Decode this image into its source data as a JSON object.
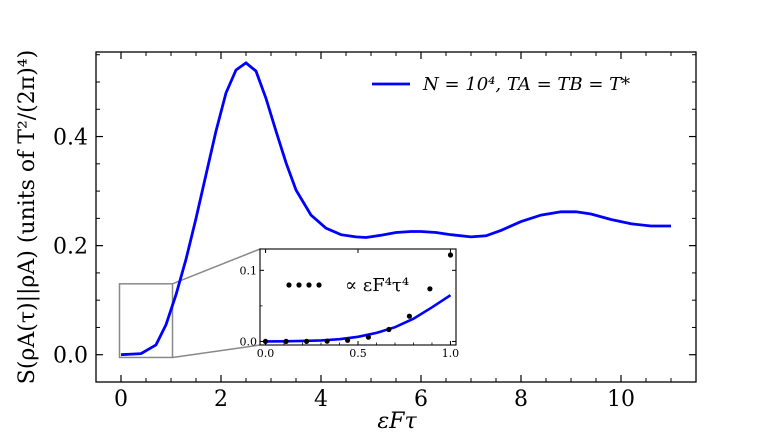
{
  "chart_data": [
    {
      "type": "line",
      "xlabel": "εFτ",
      "ylabel": "S(ρA(τ)||ρA) (units of T²/(2π)⁴)",
      "xlim": [
        -0.5,
        11.5
      ],
      "ylim": [
        -0.05,
        0.555
      ],
      "xticks": [
        0,
        2,
        4,
        6,
        8,
        10
      ],
      "xtick_labels": [
        "0",
        "2",
        "4",
        "6",
        "8",
        "10"
      ],
      "yticks": [
        0.0,
        0.2,
        0.4
      ],
      "ytick_labels": [
        "0.0",
        "0.2",
        "0.4"
      ],
      "grid": false,
      "legend_position": "top-right",
      "series": [
        {
          "name": "N = 10⁴, TA = TB = T*",
          "color": "#0000ff",
          "x": [
            0,
            0.4,
            0.7,
            0.9,
            1.1,
            1.3,
            1.5,
            1.7,
            1.9,
            2.1,
            2.3,
            2.5,
            2.7,
            2.9,
            3.1,
            3.3,
            3.5,
            3.8,
            4.1,
            4.4,
            4.7,
            4.9,
            5.2,
            5.5,
            5.8,
            6.0,
            6.3,
            6.6,
            7.0,
            7.3,
            7.6,
            8.0,
            8.4,
            8.8,
            9.1,
            9.4,
            9.8,
            10.2,
            10.6,
            11.0
          ],
          "y": [
            0.0,
            0.002,
            0.018,
            0.055,
            0.11,
            0.175,
            0.25,
            0.33,
            0.41,
            0.48,
            0.522,
            0.535,
            0.52,
            0.47,
            0.41,
            0.352,
            0.302,
            0.256,
            0.232,
            0.22,
            0.216,
            0.215,
            0.219,
            0.224,
            0.226,
            0.226,
            0.224,
            0.22,
            0.216,
            0.218,
            0.228,
            0.244,
            0.256,
            0.262,
            0.262,
            0.258,
            0.248,
            0.24,
            0.236,
            0.236
          ]
        }
      ]
    },
    {
      "type": "line",
      "xlim": [
        -0.03,
        1.03
      ],
      "ylim": [
        -0.005,
        0.13
      ],
      "xticks": [
        0.0,
        0.5,
        1.0
      ],
      "xtick_labels": [
        "0.0",
        "0.5",
        "1.0"
      ],
      "yticks": [
        0.0,
        0.1
      ],
      "ytick_labels": [
        "0.0",
        "0.1"
      ],
      "annotation": "∝ εF⁴τ⁴",
      "series": [
        {
          "color": "#0000ff",
          "x": [
            0,
            0.1,
            0.2,
            0.3,
            0.4,
            0.5,
            0.6,
            0.7,
            0.8,
            0.9,
            1.0
          ],
          "y": [
            0.0,
            0.0002,
            0.0007,
            0.0015,
            0.0032,
            0.0065,
            0.012,
            0.02,
            0.032,
            0.048,
            0.065
          ]
        },
        {
          "marker": "dots",
          "color": "#000000",
          "x": [
            0.0,
            0.111,
            0.222,
            0.333,
            0.444,
            0.556,
            0.667,
            0.778,
            0.889,
            1.0
          ],
          "y": [
            0.0,
            0.0,
            0.0,
            0.0003,
            0.0016,
            0.0059,
            0.0168,
            0.0355,
            0.0741,
            0.1215
          ]
        }
      ]
    }
  ]
}
